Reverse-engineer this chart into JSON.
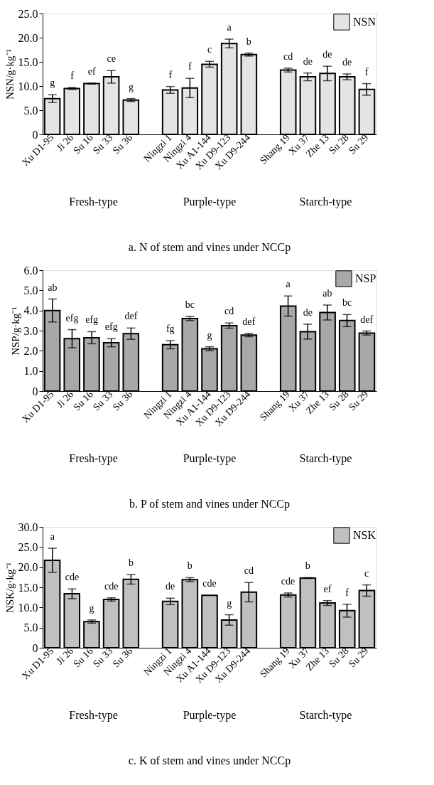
{
  "chart_data": [
    {
      "type": "bar",
      "title": "a. N of stem and vines under NCCp",
      "ylabel": "NSN/g·kg⁻¹",
      "categories": [
        "Xu D1-95",
        "Ji 26",
        "Su 16",
        "Su 33",
        "Su 36",
        null,
        "Ningzi 1",
        "Ningzi 4",
        "Xu A1-144",
        "Xu D9-123",
        "Xu D9-244",
        null,
        "Shang 19",
        "Xu 37",
        "Zhe 13",
        "Su 28",
        "Su 29"
      ],
      "annotations": [
        "Fresh-type",
        "Purple-type",
        "Starch-type"
      ],
      "series": [
        {
          "name": "NSN",
          "color": "#e4e4e4",
          "values": [
            7.4,
            9.5,
            10.5,
            11.9,
            7.1,
            null,
            9.2,
            9.6,
            14.5,
            18.8,
            16.5,
            null,
            13.3,
            11.9,
            12.6,
            11.9,
            9.3
          ],
          "errors": [
            0.8,
            0.2,
            0.1,
            1.3,
            0.3,
            null,
            0.7,
            2.0,
            0.6,
            0.9,
            0.3,
            null,
            0.4,
            0.8,
            1.5,
            0.6,
            1.2
          ],
          "value_labels": [
            "g",
            "f",
            "ef",
            "ce",
            "g",
            null,
            "f",
            "f",
            "c",
            "a",
            "b",
            null,
            "cd",
            "de",
            "de",
            "de",
            "f"
          ]
        }
      ],
      "ylim": [
        0,
        25
      ],
      "yticks": [
        0,
        {
          "value": 5,
          "label": "5.0"
        },
        {
          "value": 10,
          "label": "10.0"
        },
        {
          "value": 15,
          "label": "15.0"
        },
        {
          "value": 20,
          "label": "20.0"
        },
        {
          "value": 25,
          "label": "25.0"
        }
      ],
      "legend": "top right",
      "grid": false
    },
    {
      "type": "bar",
      "title": "b. P of stem and vines under NCCp",
      "ylabel": "NSP/g·kg⁻¹",
      "categories": [
        "Xu D1-95",
        "Ji 26",
        "Su 16",
        "Su 33",
        "Su 36",
        null,
        "Ningzi 1",
        "Ningzi 4",
        "Xu A1-144",
        "Xu D9-123",
        "Xu D9-244",
        null,
        "Shang 19",
        "Xu 37",
        "Zhe 13",
        "Su 28",
        "Su 29"
      ],
      "annotations": [
        "Fresh-type",
        "Purple-type",
        "Starch-type"
      ],
      "series": [
        {
          "name": "NSP",
          "color": "#a8a8a8",
          "values": [
            4.0,
            2.6,
            2.65,
            2.4,
            2.85,
            null,
            2.3,
            3.6,
            2.1,
            3.25,
            2.78,
            null,
            4.22,
            2.95,
            3.9,
            3.5,
            2.88
          ],
          "errors": [
            0.57,
            0.45,
            0.3,
            0.2,
            0.28,
            null,
            0.2,
            0.1,
            0.1,
            0.13,
            0.08,
            null,
            0.5,
            0.37,
            0.37,
            0.3,
            0.1
          ],
          "value_labels": [
            "ab",
            "efg",
            "efg",
            "efg",
            "def",
            null,
            "fg",
            "bc",
            "g",
            "cd",
            "def",
            null,
            "a",
            "de",
            "ab",
            "bc",
            "def"
          ]
        }
      ],
      "ylim": [
        0,
        6
      ],
      "yticks": [
        0,
        {
          "value": 1,
          "label": "1.0"
        },
        {
          "value": 2,
          "label": "2.0"
        },
        {
          "value": 3,
          "label": "3.0"
        },
        {
          "value": 4,
          "label": "4.0"
        },
        {
          "value": 5,
          "label": "5.0"
        },
        {
          "value": 6,
          "label": "6.0"
        }
      ],
      "legend": "top right",
      "grid": false
    },
    {
      "type": "bar",
      "title": "c. K of stem and vines under NCCp",
      "ylabel": "NSK/g·kg⁻¹",
      "categories": [
        "Xu D1-95",
        "Ji 26",
        "Su 16",
        "Su 33",
        "Su 36",
        null,
        "Ningzi 1",
        "Ningzi 4",
        "Xu A1-144",
        "Xu D9-123",
        "Xu D9-244",
        null,
        "Shang 19",
        "Xu 37",
        "Zhe 13",
        "Su 28",
        "Su 29"
      ],
      "annotations": [
        "Fresh-type",
        "Purple-type",
        "Starch-type"
      ],
      "series": [
        {
          "name": "NSK",
          "color": "#c0c0c0",
          "values": [
            21.7,
            13.4,
            6.5,
            12.0,
            17.0,
            null,
            11.5,
            16.9,
            13.0,
            6.9,
            13.8,
            null,
            13.1,
            17.3,
            11.1,
            9.2,
            14.2
          ],
          "errors": [
            3.0,
            1.2,
            0.4,
            0.4,
            1.2,
            null,
            0.8,
            0.5,
            null,
            1.3,
            2.4,
            null,
            0.5,
            0.1,
            0.6,
            1.6,
            1.4
          ],
          "value_labels": [
            "a",
            "cde",
            "g",
            "cde",
            "b",
            null,
            "de",
            "b",
            "cde",
            "g",
            "cd",
            null,
            "cde",
            "b",
            "ef",
            "f",
            "c"
          ]
        }
      ],
      "ylim": [
        0,
        30
      ],
      "yticks": [
        0,
        {
          "value": 5,
          "label": "5.0"
        },
        {
          "value": 10,
          "label": "10.0"
        },
        {
          "value": 15,
          "label": "15.0"
        },
        {
          "value": 20,
          "label": "20.0"
        },
        {
          "value": 25,
          "label": "25.0"
        },
        {
          "value": 30,
          "label": "30.0"
        }
      ],
      "legend": "top right",
      "grid": false
    }
  ]
}
